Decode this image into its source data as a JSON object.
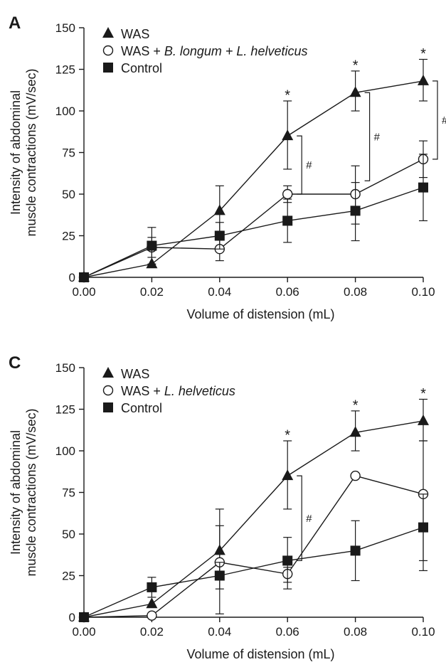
{
  "figure": {
    "text_color": "#1a1a1a",
    "line_color": "#1a1a1a",
    "background": "#ffffff"
  },
  "chart_data": [
    {
      "type": "line",
      "panel_label": "A",
      "title": "",
      "xlabel": "Volume of distension (mL)",
      "ylabel": [
        "Intensity of abdominal",
        "muscle contractions (mV/sec)"
      ],
      "x": [
        0.0,
        0.02,
        0.04,
        0.06,
        0.08,
        0.1
      ],
      "x_tick_labels": [
        "0.00",
        "0.02",
        "0.04",
        "0.06",
        "0.08",
        "0.10"
      ],
      "y_ticks": [
        0,
        25,
        50,
        75,
        100,
        125,
        150
      ],
      "xlim": [
        0.0,
        0.1
      ],
      "ylim": [
        0,
        150
      ],
      "grid": false,
      "legend_position": "top-left",
      "series": [
        {
          "name": "WAS",
          "marker": "filled-triangle",
          "values": [
            0,
            8,
            40,
            85,
            111,
            118
          ],
          "error_upper": [
            0,
            0,
            55,
            106,
            124,
            131
          ],
          "error_lower": [
            0,
            0,
            25,
            65,
            100,
            106
          ]
        },
        {
          "name_prefix": "WAS + ",
          "name_italic": "B. longum + L. helveticus",
          "marker": "open-circle",
          "values": [
            0,
            18,
            17,
            50,
            50,
            71
          ],
          "error_upper": [
            0,
            24,
            24,
            55,
            67,
            82
          ],
          "error_lower": [
            0,
            12,
            10,
            45,
            32,
            60
          ]
        },
        {
          "name": "Control",
          "marker": "filled-square",
          "values": [
            0,
            19,
            25,
            34,
            40,
            54
          ],
          "error_upper": [
            0,
            30,
            33,
            47,
            57,
            74
          ],
          "error_lower": [
            0,
            8,
            17,
            21,
            22,
            34
          ]
        }
      ],
      "significance_stars": [
        {
          "x": 0.06,
          "y": 110,
          "label": "*"
        },
        {
          "x": 0.08,
          "y": 128,
          "label": "*"
        },
        {
          "x": 0.1,
          "y": 135,
          "label": "*"
        }
      ],
      "significance_brackets": [
        {
          "x": 0.06,
          "y_low": 50,
          "y_high": 85,
          "label": "#"
        },
        {
          "x": 0.08,
          "y_low": 58,
          "y_high": 111,
          "label": "#"
        },
        {
          "x": 0.1,
          "y_low": 71,
          "y_high": 118,
          "label": "#"
        }
      ]
    },
    {
      "type": "line",
      "panel_label": "C",
      "title": "",
      "xlabel": "Volume of distension (mL)",
      "ylabel": [
        "Intensity of abdominal",
        "muscle contractions (mV/sec)"
      ],
      "x": [
        0.0,
        0.02,
        0.04,
        0.06,
        0.08,
        0.1
      ],
      "x_tick_labels": [
        "0.00",
        "0.02",
        "0.04",
        "0.06",
        "0.08",
        "0.10"
      ],
      "y_ticks": [
        0,
        25,
        50,
        75,
        100,
        125,
        150
      ],
      "xlim": [
        0.0,
        0.1
      ],
      "ylim": [
        0,
        150
      ],
      "grid": false,
      "legend_position": "top-left",
      "series": [
        {
          "name": "WAS",
          "marker": "filled-triangle",
          "values": [
            0,
            8,
            40,
            85,
            111,
            118
          ],
          "error_upper": [
            0,
            0,
            55,
            106,
            124,
            131
          ],
          "error_lower": [
            0,
            0,
            25,
            65,
            100,
            106
          ]
        },
        {
          "name_prefix": "WAS + ",
          "name_italic": "L. helveticus",
          "marker": "open-circle",
          "values": [
            0,
            1,
            33,
            26,
            85,
            74
          ],
          "error_upper": [
            0,
            0,
            65,
            30,
            85,
            106
          ],
          "error_lower": [
            0,
            0,
            2,
            17,
            85,
            28
          ]
        },
        {
          "name": "Control",
          "marker": "filled-square",
          "values": [
            0,
            18,
            25,
            34,
            40,
            54
          ],
          "error_upper": [
            0,
            24,
            33,
            48,
            58,
            74
          ],
          "error_lower": [
            0,
            12,
            17,
            21,
            22,
            34
          ]
        }
      ],
      "significance_stars": [
        {
          "x": 0.06,
          "y": 110,
          "label": "*"
        },
        {
          "x": 0.08,
          "y": 128,
          "label": "*"
        },
        {
          "x": 0.1,
          "y": 135,
          "label": "*"
        }
      ],
      "significance_brackets": [
        {
          "x": 0.06,
          "y_low": 34,
          "y_high": 85,
          "label": "#"
        }
      ]
    }
  ]
}
